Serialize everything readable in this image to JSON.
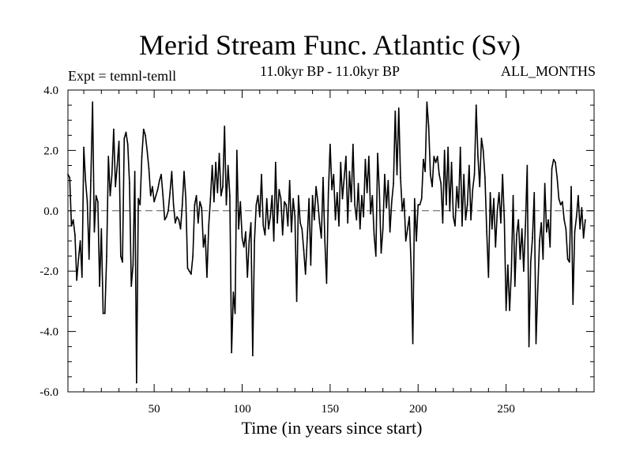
{
  "chart_data": {
    "type": "line",
    "title": "Merid Stream Func. Atlantic (Sv)",
    "subtitle_left": "Expt = temnl-temll",
    "subtitle_center": "11.0kyr BP - 11.0kyr BP",
    "subtitle_right": "ALL_MONTHS",
    "xlabel": "Time (in years since start)",
    "ylabel": "",
    "xlim": [
      1,
      300
    ],
    "ylim": [
      -6.0,
      4.0
    ],
    "x_ticks": [
      50,
      100,
      150,
      200,
      250
    ],
    "x_tick_labels": [
      "50",
      "100",
      "150",
      "200",
      "250"
    ],
    "y_ticks": [
      -6,
      -4,
      -2,
      0,
      2,
      4
    ],
    "y_tick_labels": [
      "-6.0",
      "-4.0",
      "-2.0",
      "0.0",
      "2.0",
      "4.0"
    ],
    "reference_line": 0,
    "grid": false,
    "x_start": 1,
    "series": [
      {
        "name": "Merid Stream Func. Atlantic",
        "values": [
          1.2,
          1.1,
          -0.5,
          -0.3,
          -0.8,
          -2.3,
          -1.6,
          -1.0,
          -2.2,
          2.1,
          1.0,
          0.3,
          -1.6,
          1.0,
          3.6,
          -0.7,
          0.5,
          0.3,
          -2.5,
          -0.6,
          -3.4,
          -3.4,
          -1.5,
          1.8,
          0.5,
          1.2,
          2.7,
          0.8,
          1.5,
          2.3,
          -1.5,
          -1.7,
          2.4,
          2.6,
          2.2,
          0.9,
          -2.5,
          -1.8,
          1.3,
          -5.7,
          0.4,
          0.2,
          1.8,
          2.7,
          2.5,
          2.0,
          1.4,
          0.5,
          0.8,
          0.3,
          0.5,
          0.7,
          1.0,
          1.2,
          0.5,
          -0.3,
          -0.2,
          0.0,
          0.6,
          1.3,
          0.2,
          -0.4,
          -0.2,
          -0.3,
          -0.6,
          0.2,
          1.3,
          0.4,
          -1.9,
          -2.0,
          -2.1,
          -1.5,
          0.2,
          0.5,
          -0.4,
          0.3,
          0.1,
          -1.2,
          -0.8,
          -2.2,
          -0.5,
          0.4,
          1.5,
          0.3,
          1.6,
          0.6,
          1.9,
          0.5,
          0.8,
          2.8,
          0.2,
          1.5,
          0.5,
          -4.7,
          -2.7,
          -3.4,
          2.0,
          -0.6,
          0.3,
          -0.9,
          -1.2,
          -0.7,
          -2.2,
          -1.0,
          -0.4,
          -4.8,
          -1.0,
          0.2,
          0.5,
          -0.2,
          1.2,
          -0.5,
          -0.8,
          0.4,
          -0.6,
          -0.2,
          0.5,
          -1.0,
          1.6,
          -0.4,
          0.7,
          0.4,
          -0.8,
          0.3,
          0.2,
          -0.5,
          1.0,
          -0.7,
          0.4,
          -0.2,
          -3.0,
          0.5,
          -0.4,
          -0.6,
          -1.3,
          -2.1,
          -0.9,
          0.4,
          -1.8,
          0.5,
          -0.3,
          0.8,
          0.3,
          -0.4,
          -0.9,
          1.1,
          -1.0,
          -2.4,
          0.6,
          2.2,
          0.7,
          1.2,
          -0.3,
          0.6,
          -0.5,
          1.6,
          0.4,
          1.1,
          1.8,
          -0.4,
          1.3,
          0.3,
          2.2,
          0.2,
          -0.3,
          0.9,
          -0.6,
          0.5,
          -0.2,
          1.7,
          0.6,
          1.8,
          -0.1,
          0.5,
          -0.8,
          -1.5,
          1.9,
          0.6,
          -1.4,
          -0.6,
          1.2,
          0.1,
          1.0,
          -0.7,
          0.3,
          0.9,
          3.3,
          1.2,
          3.4,
          1.1,
          0.0,
          0.4,
          -1.0,
          -0.6,
          -0.2,
          -1.8,
          -4.4,
          0.4,
          -1.0,
          0.2,
          0.2,
          0.4,
          1.7,
          1.3,
          3.6,
          2.8,
          1.2,
          0.8,
          1.8,
          1.6,
          1.8,
          1.2,
          0.9,
          -0.4,
          2.0,
          0.2,
          2.1,
          0.0,
          1.6,
          -0.2,
          -0.5,
          0.8,
          0.1,
          2.1,
          -0.5,
          1.2,
          -0.3,
          0.2,
          1.5,
          -0.3,
          0.7,
          1.2,
          3.5,
          1.8,
          0.8,
          2.4,
          2.0,
          1.1,
          -0.7,
          -2.2,
          0.6,
          -0.6,
          0.4,
          -1.2,
          0.0,
          0.6,
          -0.4,
          1.2,
          -0.3,
          -3.3,
          -1.8,
          -3.3,
          -2.0,
          0.5,
          -2.5,
          -0.8,
          -0.3,
          -1.6,
          -0.6,
          -2.0,
          -0.5,
          1.5,
          -4.5,
          -1.7,
          -0.9,
          0.6,
          -4.4,
          -2.6,
          -1.0,
          -0.4,
          -1.6,
          0.9,
          -0.7,
          -0.3,
          -1.2,
          1.4,
          1.7,
          1.6,
          1.1,
          0.4,
          0.2,
          0.3,
          -0.3,
          -0.6,
          -1.6,
          -1.7,
          0.8,
          -3.1,
          -0.7,
          -0.2,
          0.5,
          -0.6,
          0.1,
          -0.9,
          -0.3
        ]
      }
    ]
  }
}
